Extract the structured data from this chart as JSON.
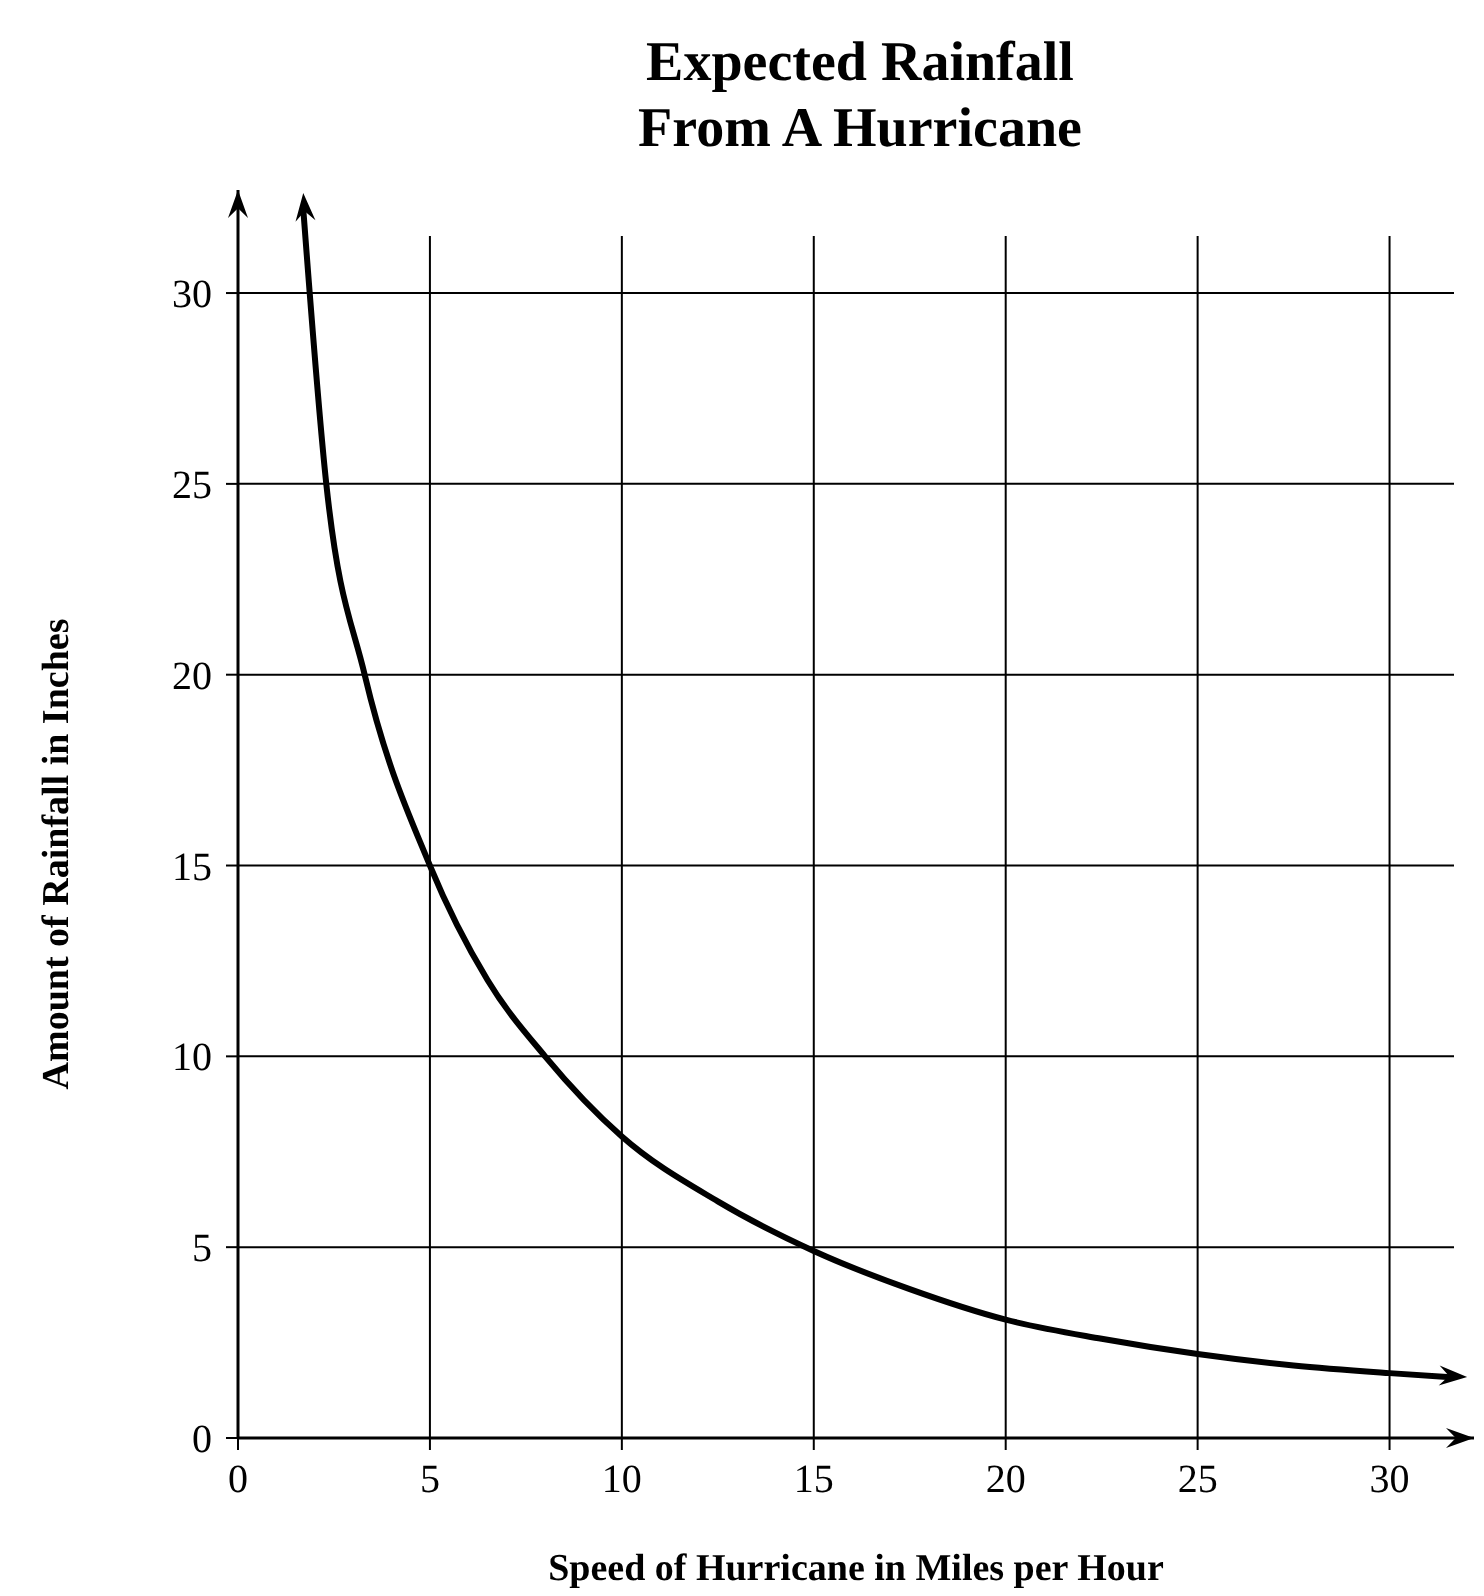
{
  "chart_data": {
    "type": "line",
    "title": "Expected Rainfall\nFrom A Hurricane",
    "xlabel": "Speed of Hurricane in Miles per Hour",
    "ylabel": "Amount of Rainfall in Inches",
    "xlim": [
      0,
      32.2
    ],
    "ylim": [
      0,
      32.7
    ],
    "xticks": [
      0,
      5,
      10,
      15,
      20,
      25,
      30
    ],
    "yticks": [
      0,
      5,
      10,
      15,
      20,
      25,
      30
    ],
    "grid": true,
    "marker": "none",
    "line_style": "solid",
    "series": [
      {
        "color": "#000000",
        "x": [
          1.7,
          2.3,
          3.3,
          5,
          6.5,
          8,
          10,
          12.5,
          15,
          17.5,
          20,
          22.5,
          25,
          27.5,
          30,
          31.5
        ],
        "values": [
          32.2,
          25,
          20,
          15,
          12,
          10,
          7.9,
          6.2,
          4.9,
          3.9,
          3.1,
          2.6,
          2.2,
          1.9,
          1.7,
          1.6
        ]
      }
    ]
  }
}
